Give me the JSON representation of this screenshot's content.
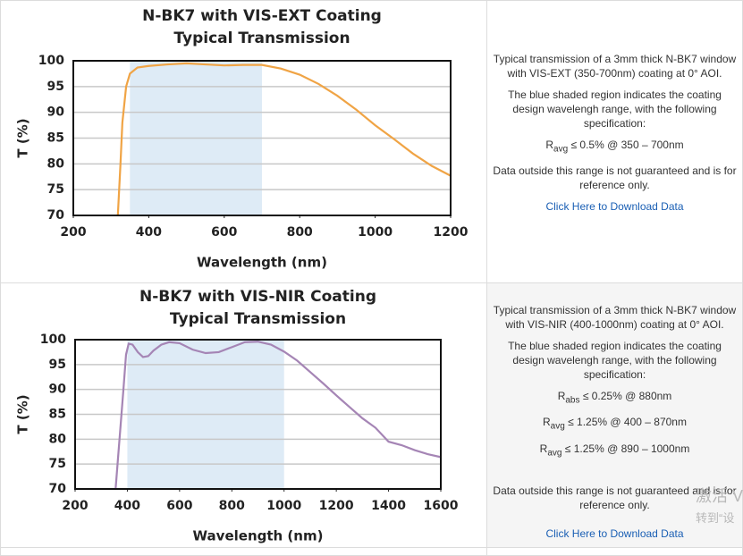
{
  "chart_data": [
    {
      "type": "line",
      "title": "N-BK7 with VIS-EXT Coating",
      "subtitle": "Typical Transmission",
      "x_label": "Wavelength (nm)",
      "y_label": "T (%)",
      "x": [
        318,
        325,
        330,
        340,
        350,
        370,
        400,
        450,
        500,
        550,
        600,
        650,
        700,
        750,
        800,
        850,
        900,
        950,
        1000,
        1050,
        1100,
        1150,
        1200
      ],
      "series": [
        {
          "color": "#f0a445",
          "values": [
            70,
            80,
            88,
            95,
            97.5,
            98.7,
            99,
            99.3,
            99.5,
            99.3,
            99.1,
            99.2,
            99.2,
            98.5,
            97.3,
            95.5,
            93.2,
            90.5,
            87.5,
            84.8,
            82,
            79.6,
            77.7
          ]
        }
      ],
      "highlight_band": {
        "range": [
          350,
          700
        ],
        "color": "#deebf6"
      },
      "xlim": [
        200,
        1200
      ],
      "xticks": [
        200,
        400,
        600,
        800,
        1000,
        1200
      ],
      "ylim": [
        70,
        100
      ],
      "yticks": [
        70,
        75,
        80,
        85,
        90,
        95,
        100
      ],
      "grid": true
    },
    {
      "type": "line",
      "title": "N-BK7 with VIS-NIR Coating",
      "subtitle": "Typical Transmission",
      "x_label": "Wavelength (nm)",
      "y_label": "T (%)",
      "x": [
        355,
        370,
        385,
        395,
        405,
        420,
        440,
        460,
        480,
        500,
        530,
        560,
        600,
        650,
        700,
        750,
        800,
        850,
        900,
        950,
        1000,
        1050,
        1100,
        1150,
        1200,
        1250,
        1300,
        1350,
        1400,
        1450,
        1500,
        1550,
        1600
      ],
      "series": [
        {
          "color": "#a585b5",
          "values": [
            70,
            80,
            90,
            97,
            99.2,
            99,
            97.5,
            96.5,
            96.7,
            97.8,
            99,
            99.5,
            99.3,
            98,
            97.3,
            97.5,
            98.5,
            99.5,
            99.6,
            99,
            97.6,
            95.8,
            93.5,
            91.2,
            88.8,
            86.5,
            84.2,
            82.3,
            79.5,
            78.8,
            77.8,
            77,
            76.4
          ]
        }
      ],
      "highlight_band": {
        "range": [
          400,
          1000
        ],
        "color": "#deebf6"
      },
      "xlim": [
        200,
        1600
      ],
      "xticks": [
        200,
        400,
        600,
        800,
        1000,
        1200,
        1400,
        1600
      ],
      "ylim": [
        70,
        100
      ],
      "yticks": [
        70,
        75,
        80,
        85,
        90,
        95,
        100
      ],
      "grid": true
    }
  ],
  "descriptions": [
    {
      "intro": "Typical transmission of a 3mm thick N-BK7 window with VIS-EXT (350-700nm) coating at 0° AOI.",
      "band_note": "The blue shaded region indicates the coating design wavelengh range, with the following specification:",
      "specs": [
        {
          "symbol": "R",
          "sub": "avg",
          "text": " ≤ 0.5% @ 350 – 700nm"
        }
      ],
      "disclaimer": "Data outside this range is not guaranteed and is for reference only.",
      "link": "Click Here to Download Data"
    },
    {
      "intro": "Typical transmission of a 3mm thick N-BK7 window with VIS-NIR (400-1000nm) coating at 0° AOI.",
      "band_note": "The blue shaded region indicates the coating design wavelengh range, with the following specification:",
      "specs": [
        {
          "symbol": "R",
          "sub": "abs",
          "text": " ≤ 0.25% @ 880nm"
        },
        {
          "symbol": "R",
          "sub": "avg",
          "text": " ≤ 1.25% @ 400 – 870nm"
        },
        {
          "symbol": "R",
          "sub": "avg",
          "text": " ≤ 1.25% @ 890 – 1000nm"
        }
      ],
      "disclaimer": "Data outside this range is not guaranteed and is for reference only.",
      "link": "Click Here to Download Data"
    }
  ],
  "watermark": [
    "激活 V",
    "转到“设"
  ]
}
